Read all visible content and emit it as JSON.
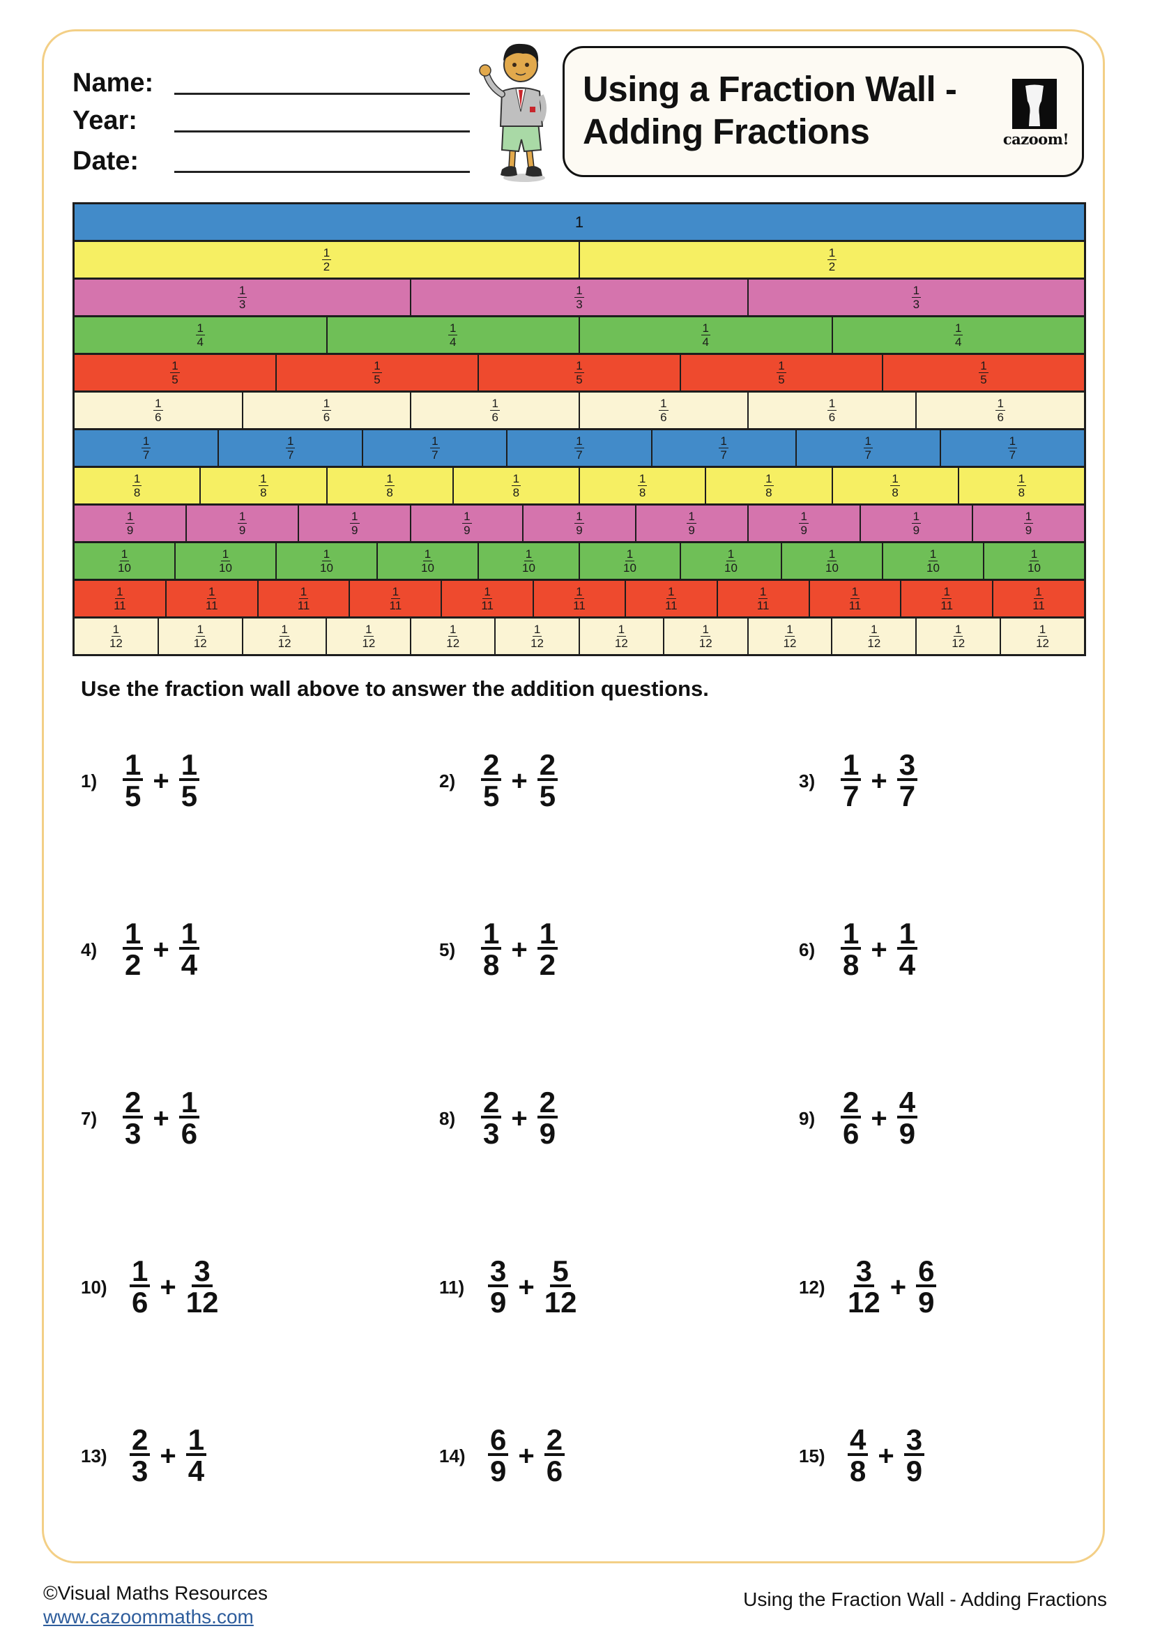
{
  "header": {
    "fields": [
      {
        "label": "Name:",
        "value": ""
      },
      {
        "label": "Year:",
        "value": ""
      },
      {
        "label": "Date:",
        "value": ""
      }
    ],
    "title": "Using a Fraction Wall -\nAdding Fractions",
    "logo_text": "cazoom!",
    "mascot": "cartoon-boy-waving"
  },
  "colors": {
    "border": "#f3cf86",
    "row_1": "#428bc9",
    "row_2": "#f6ef63",
    "row_3": "#d574ad",
    "row_4": "#6fbf57",
    "row_5": "#ee4a2e",
    "row_6": "#fbf4d4",
    "row_7": "#428bc9",
    "row_8": "#f6ef63",
    "row_9": "#d574ad",
    "row_10": "#6fbf57",
    "row_11": "#ee4a2e",
    "row_12": "#fbf4d4"
  },
  "fraction_wall": {
    "rows": [
      {
        "denominator": 1,
        "label": "1",
        "color": "#428bc9"
      },
      {
        "denominator": 2,
        "color": "#f6ef63"
      },
      {
        "denominator": 3,
        "color": "#d574ad"
      },
      {
        "denominator": 4,
        "color": "#6fbf57"
      },
      {
        "denominator": 5,
        "color": "#ee4a2e"
      },
      {
        "denominator": 6,
        "color": "#fbf4d4"
      },
      {
        "denominator": 7,
        "color": "#428bc9"
      },
      {
        "denominator": 8,
        "color": "#f6ef63"
      },
      {
        "denominator": 9,
        "color": "#d574ad"
      },
      {
        "denominator": 10,
        "color": "#6fbf57"
      },
      {
        "denominator": 11,
        "color": "#ee4a2e"
      },
      {
        "denominator": 12,
        "color": "#fbf4d4"
      }
    ]
  },
  "instruction": "Use the fraction wall above to answer the addition questions.",
  "questions": [
    {
      "label": "1)",
      "a": {
        "n": "1",
        "d": "5"
      },
      "op": "+",
      "b": {
        "n": "1",
        "d": "5"
      }
    },
    {
      "label": "2)",
      "a": {
        "n": "2",
        "d": "5"
      },
      "op": "+",
      "b": {
        "n": "2",
        "d": "5"
      }
    },
    {
      "label": "3)",
      "a": {
        "n": "1",
        "d": "7"
      },
      "op": "+",
      "b": {
        "n": "3",
        "d": "7"
      }
    },
    {
      "label": "4)",
      "a": {
        "n": "1",
        "d": "2"
      },
      "op": "+",
      "b": {
        "n": "1",
        "d": "4"
      }
    },
    {
      "label": "5)",
      "a": {
        "n": "1",
        "d": "8"
      },
      "op": "+",
      "b": {
        "n": "1",
        "d": "2"
      }
    },
    {
      "label": "6)",
      "a": {
        "n": "1",
        "d": "8"
      },
      "op": "+",
      "b": {
        "n": "1",
        "d": "4"
      }
    },
    {
      "label": "7)",
      "a": {
        "n": "2",
        "d": "3"
      },
      "op": "+",
      "b": {
        "n": "1",
        "d": "6"
      }
    },
    {
      "label": "8)",
      "a": {
        "n": "2",
        "d": "3"
      },
      "op": "+",
      "b": {
        "n": "2",
        "d": "9"
      }
    },
    {
      "label": "9)",
      "a": {
        "n": "2",
        "d": "6"
      },
      "op": "+",
      "b": {
        "n": "4",
        "d": "9"
      }
    },
    {
      "label": "10)",
      "a": {
        "n": "1",
        "d": "6"
      },
      "op": "+",
      "b": {
        "n": "3",
        "d": "12"
      }
    },
    {
      "label": "11)",
      "a": {
        "n": "3",
        "d": "9"
      },
      "op": "+",
      "b": {
        "n": "5",
        "d": "12"
      }
    },
    {
      "label": "12)",
      "a": {
        "n": "3",
        "d": "12"
      },
      "op": "+",
      "b": {
        "n": "6",
        "d": "9"
      }
    },
    {
      "label": "13)",
      "a": {
        "n": "2",
        "d": "3"
      },
      "op": "+",
      "b": {
        "n": "1",
        "d": "4"
      }
    },
    {
      "label": "14)",
      "a": {
        "n": "6",
        "d": "9"
      },
      "op": "+",
      "b": {
        "n": "2",
        "d": "6"
      }
    },
    {
      "label": "15)",
      "a": {
        "n": "4",
        "d": "8"
      },
      "op": "+",
      "b": {
        "n": "3",
        "d": "9"
      }
    }
  ],
  "footer": {
    "copyright": "©Visual Maths Resources",
    "website": "www.cazoommaths.com",
    "right_title": "Using the Fraction Wall - Adding Fractions"
  }
}
